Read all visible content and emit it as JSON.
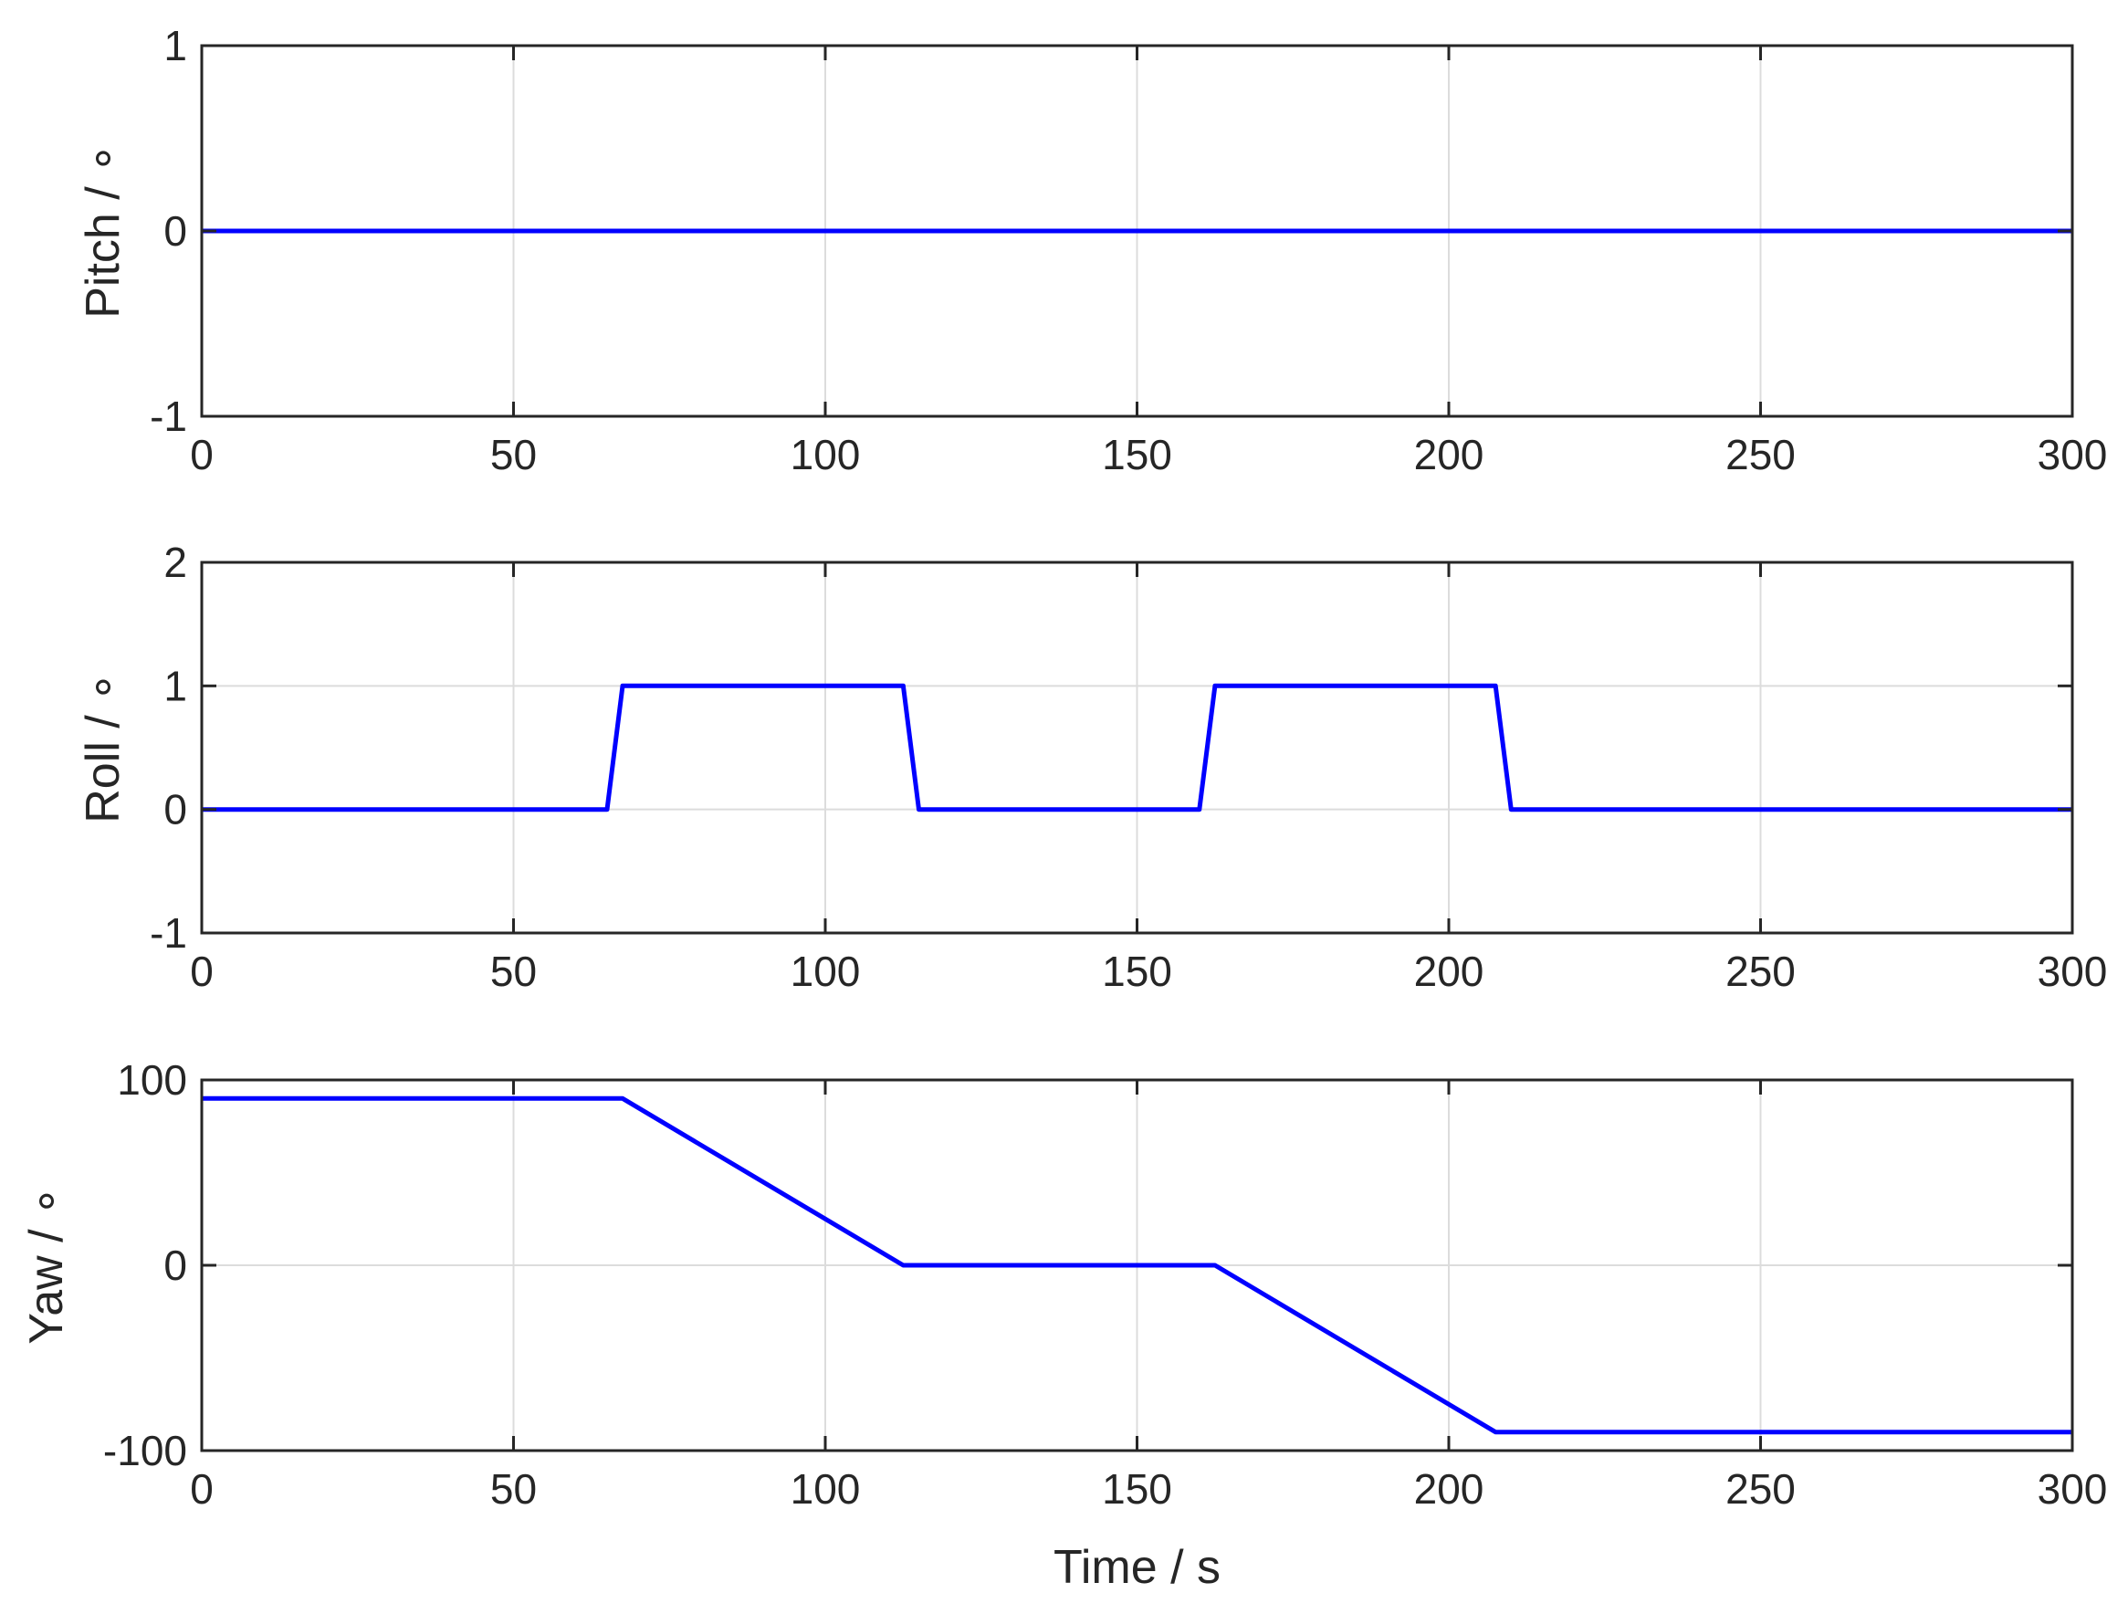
{
  "chart_data": [
    {
      "type": "line",
      "xlabel": "",
      "ylabel": "Pitch / ∘",
      "xlim": [
        0,
        300
      ],
      "ylim": [
        -1,
        1
      ],
      "xticks": [
        0,
        50,
        100,
        150,
        200,
        250,
        300
      ],
      "yticks": [
        -1,
        0,
        1
      ],
      "xtick_labels": [
        "0",
        "50",
        "100",
        "150",
        "200",
        "250",
        "300"
      ],
      "ytick_labels": [
        "-1",
        "0",
        "1"
      ],
      "grid": true,
      "series": [
        {
          "color": "#0000ff",
          "x": [
            0,
            300
          ],
          "y": [
            0,
            0
          ]
        }
      ]
    },
    {
      "type": "line",
      "xlabel": "",
      "ylabel": "Roll / ∘",
      "xlim": [
        0,
        300
      ],
      "ylim": [
        -1,
        2
      ],
      "xticks": [
        0,
        50,
        100,
        150,
        200,
        250,
        300
      ],
      "yticks": [
        -1,
        0,
        1,
        2
      ],
      "xtick_labels": [
        "0",
        "50",
        "100",
        "150",
        "200",
        "250",
        "300"
      ],
      "ytick_labels": [
        "-1",
        "0",
        "1",
        "2"
      ],
      "grid": true,
      "series": [
        {
          "color": "#0000ff",
          "x": [
            0,
            65,
            67.5,
            112.5,
            115,
            160,
            162.5,
            207.5,
            210,
            300
          ],
          "y": [
            0,
            0,
            1,
            1,
            0,
            0,
            1,
            1,
            0,
            0
          ]
        }
      ]
    },
    {
      "type": "line",
      "xlabel": "Time / s",
      "ylabel": "Yaw / ∘",
      "xlim": [
        0,
        300
      ],
      "ylim": [
        -100,
        100
      ],
      "xticks": [
        0,
        50,
        100,
        150,
        200,
        250,
        300
      ],
      "yticks": [
        -100,
        0,
        100
      ],
      "xtick_labels": [
        "0",
        "50",
        "100",
        "150",
        "200",
        "250",
        "300"
      ],
      "ytick_labels": [
        "-100",
        "0",
        "100"
      ],
      "grid": true,
      "series": [
        {
          "color": "#0000ff",
          "x": [
            0,
            67.5,
            112.5,
            162.5,
            207.5,
            300
          ],
          "y": [
            90,
            90,
            0,
            0,
            -90,
            -90
          ]
        }
      ]
    }
  ]
}
